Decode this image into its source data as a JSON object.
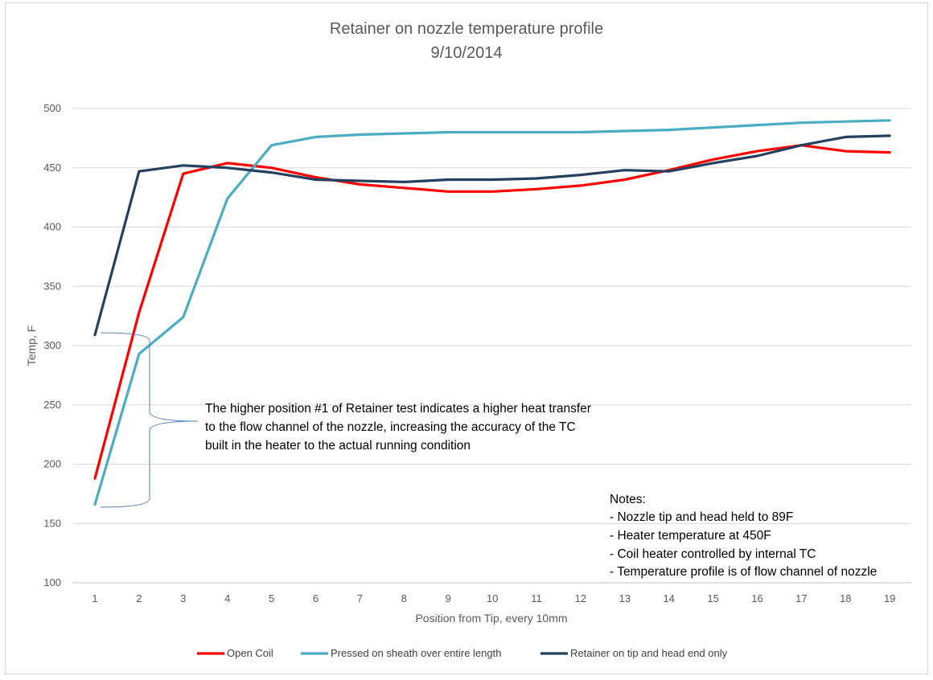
{
  "chart_data": {
    "type": "line",
    "title": "Retainer on nozzle temperature profile",
    "subtitle": "9/10/2014",
    "xlabel": "Position from Tip, every 10mm",
    "ylabel": "Temp, F",
    "ylim": [
      100,
      500
    ],
    "yticks": [
      100,
      150,
      200,
      250,
      300,
      350,
      400,
      450,
      500
    ],
    "categories": [
      "1",
      "2",
      "3",
      "4",
      "5",
      "6",
      "7",
      "8",
      "9",
      "10",
      "11",
      "12",
      "13",
      "14",
      "15",
      "16",
      "17",
      "18",
      "19"
    ],
    "grid": true,
    "legend_position": "bottom",
    "series": [
      {
        "name": "Open Coil",
        "color": "#ff0000",
        "values": [
          188,
          328,
          445,
          454,
          450,
          442,
          436,
          433,
          430,
          430,
          432,
          435,
          440,
          448,
          457,
          464,
          469,
          464,
          463
        ]
      },
      {
        "name": "Pressed on sheath over entire length",
        "color": "#4bacc6",
        "values": [
          166,
          293,
          324,
          424,
          469,
          476,
          478,
          479,
          480,
          480,
          480,
          480,
          481,
          482,
          484,
          486,
          488,
          489,
          490
        ]
      },
      {
        "name": "Retainer on tip and head end only",
        "color": "#243f60",
        "values": [
          309,
          447,
          452,
          450,
          446,
          440,
          439,
          438,
          440,
          440,
          441,
          444,
          448,
          447,
          454,
          460,
          469,
          476,
          477
        ]
      }
    ],
    "annotations": {
      "bracket_text": [
        "The higher position #1 of Retainer test indicates a higher heat transfer",
        "to the flow channel of the nozzle, increasing the accuracy of the TC",
        "built in the heater to the actual running condition"
      ],
      "notes": [
        "Notes:",
        "- Nozzle tip and head held to 89F",
        "- Heater temperature at 450F",
        "- Coil heater controlled by internal TC",
        "- Temperature profile is of flow channel of nozzle"
      ]
    }
  }
}
